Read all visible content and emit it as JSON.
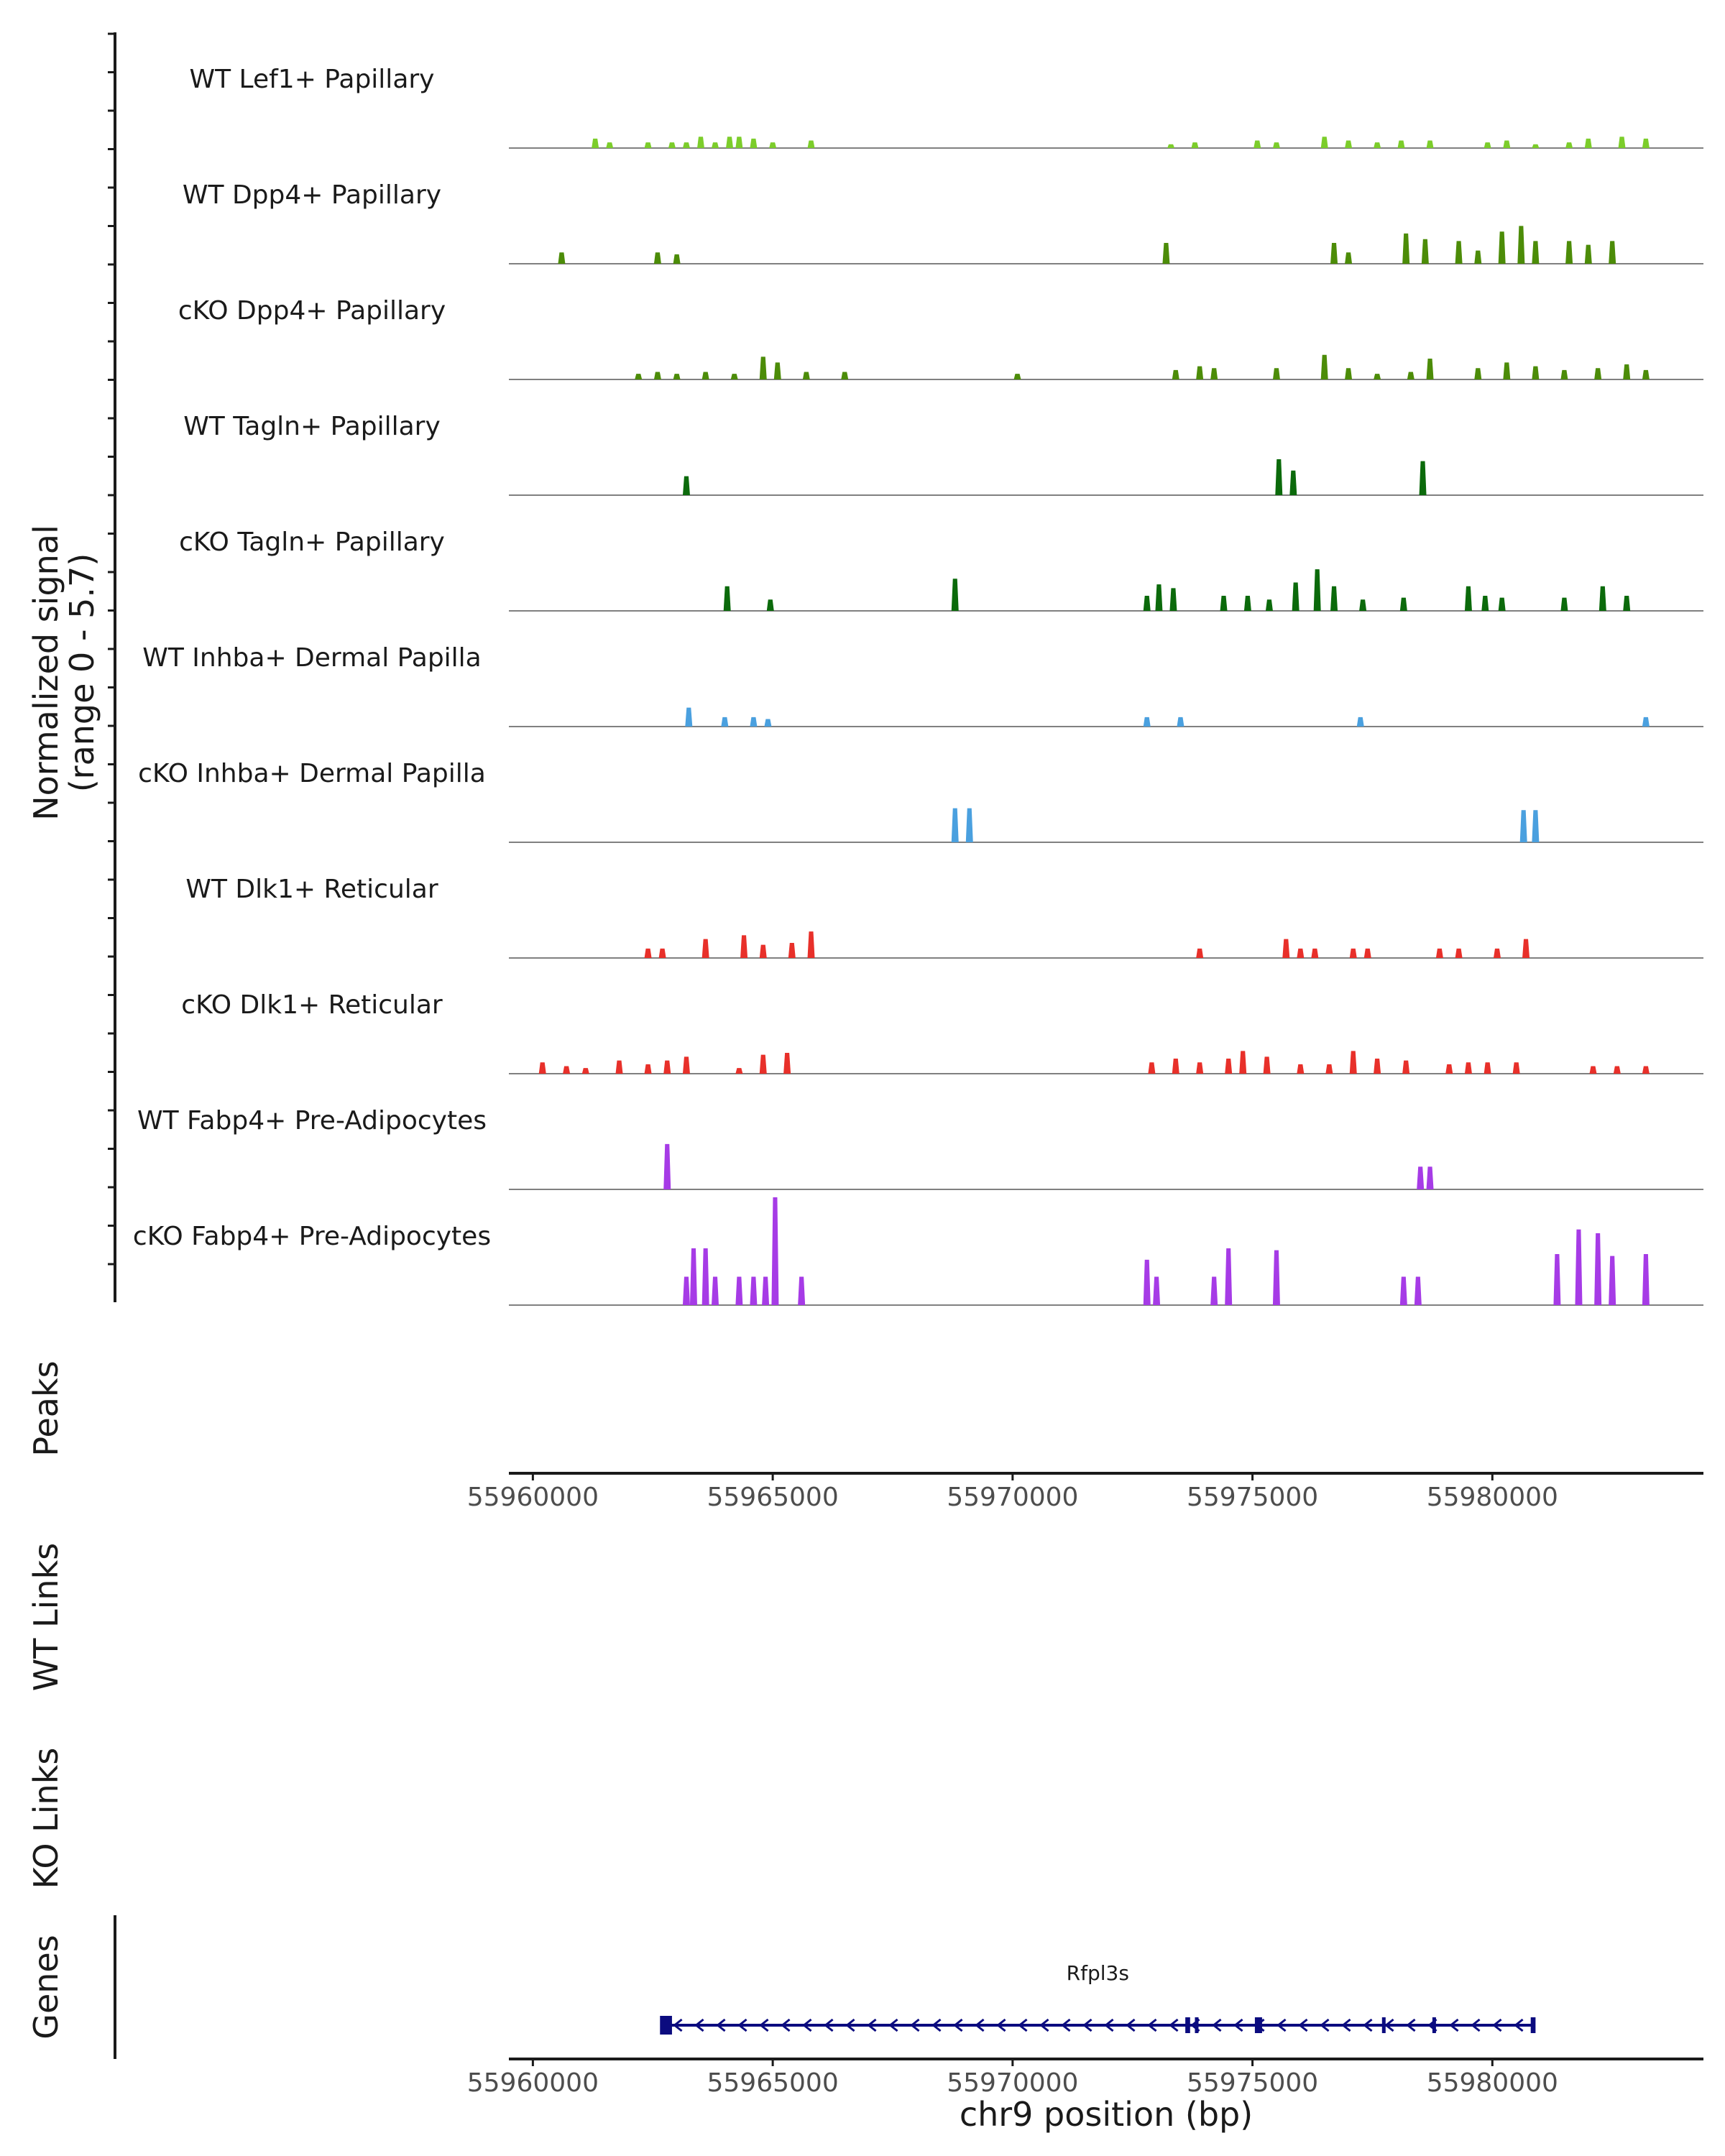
{
  "chart_data": {
    "type": "coverage-track",
    "y_axis_title": "Normalized signal",
    "y_axis_subtitle": "(range 0 - 5.7)",
    "y_range": [
      0,
      5.7
    ],
    "x_range": [
      55959500,
      55984400
    ],
    "xlabel": "chr9 position (bp)",
    "x_ticks": [
      55960000,
      55965000,
      55970000,
      55975000,
      55980000
    ],
    "x_tick_labels": [
      "55960000",
      "55965000",
      "55970000",
      "55975000",
      "55980000"
    ],
    "panels": {
      "peaks": "Peaks",
      "wt_links": "WT Links",
      "ko_links": "KO Links",
      "genes": "Genes"
    },
    "tracks": [
      {
        "label": "WT Lef1+ Papillary",
        "color": "#7CCD2B",
        "peaks": [
          [
            55961300,
            0.5
          ],
          [
            55961600,
            0.3
          ],
          [
            55962400,
            0.3
          ],
          [
            55962900,
            0.3
          ],
          [
            55963200,
            0.3
          ],
          [
            55963500,
            0.6
          ],
          [
            55963800,
            0.3
          ],
          [
            55964100,
            0.6
          ],
          [
            55964300,
            0.6
          ],
          [
            55964600,
            0.5
          ],
          [
            55965000,
            0.3
          ],
          [
            55965800,
            0.4
          ],
          [
            55973300,
            0.2
          ],
          [
            55973800,
            0.3
          ],
          [
            55975100,
            0.4
          ],
          [
            55975500,
            0.3
          ],
          [
            55976500,
            0.6
          ],
          [
            55977000,
            0.4
          ],
          [
            55977600,
            0.3
          ],
          [
            55978100,
            0.4
          ],
          [
            55978700,
            0.4
          ],
          [
            55979900,
            0.3
          ],
          [
            55980300,
            0.4
          ],
          [
            55980900,
            0.2
          ],
          [
            55981600,
            0.3
          ],
          [
            55982000,
            0.5
          ],
          [
            55982700,
            0.6
          ],
          [
            55983200,
            0.5
          ]
        ]
      },
      {
        "label": "WT Dpp4+ Papillary",
        "color": "#4C8C08",
        "peaks": [
          [
            55960600,
            0.6
          ],
          [
            55962600,
            0.6
          ],
          [
            55963000,
            0.5
          ],
          [
            55973200,
            1.1
          ],
          [
            55976700,
            1.1
          ],
          [
            55977000,
            0.6
          ],
          [
            55978200,
            1.6
          ],
          [
            55978600,
            1.3
          ],
          [
            55979300,
            1.2
          ],
          [
            55979700,
            0.7
          ],
          [
            55980200,
            1.7
          ],
          [
            55980600,
            2.0
          ],
          [
            55980900,
            1.2
          ],
          [
            55981600,
            1.2
          ],
          [
            55982000,
            1.0
          ],
          [
            55982500,
            1.2
          ]
        ]
      },
      {
        "label": "cKO Dpp4+ Papillary",
        "color": "#4C8C08",
        "peaks": [
          [
            55962200,
            0.3
          ],
          [
            55962600,
            0.4
          ],
          [
            55963000,
            0.3
          ],
          [
            55963600,
            0.4
          ],
          [
            55964200,
            0.3
          ],
          [
            55964800,
            1.2
          ],
          [
            55965100,
            0.9
          ],
          [
            55965700,
            0.4
          ],
          [
            55966500,
            0.4
          ],
          [
            55970100,
            0.3
          ],
          [
            55973400,
            0.5
          ],
          [
            55973900,
            0.7
          ],
          [
            55974200,
            0.6
          ],
          [
            55975500,
            0.6
          ],
          [
            55976500,
            1.3
          ],
          [
            55977000,
            0.6
          ],
          [
            55977600,
            0.3
          ],
          [
            55978300,
            0.4
          ],
          [
            55978700,
            1.1
          ],
          [
            55979700,
            0.6
          ],
          [
            55980300,
            0.9
          ],
          [
            55980900,
            0.7
          ],
          [
            55981500,
            0.5
          ],
          [
            55982200,
            0.6
          ],
          [
            55982800,
            0.8
          ],
          [
            55983200,
            0.5
          ]
        ]
      },
      {
        "label": "WT Tagln+ Papillary",
        "color": "#0B6A0B",
        "peaks": [
          [
            55963200,
            1.0
          ],
          [
            55975550,
            1.9
          ],
          [
            55975850,
            1.3
          ],
          [
            55978550,
            1.8
          ]
        ]
      },
      {
        "label": "cKO Tagln+ Papillary",
        "color": "#0B6A0B",
        "peaks": [
          [
            55964050,
            1.3
          ],
          [
            55964950,
            0.6
          ],
          [
            55968800,
            1.7
          ],
          [
            55972800,
            0.8
          ],
          [
            55973050,
            1.4
          ],
          [
            55973350,
            1.2
          ],
          [
            55974400,
            0.8
          ],
          [
            55974900,
            0.8
          ],
          [
            55975350,
            0.6
          ],
          [
            55975900,
            1.5
          ],
          [
            55976350,
            2.2
          ],
          [
            55976700,
            1.3
          ],
          [
            55977300,
            0.6
          ],
          [
            55978150,
            0.7
          ],
          [
            55979500,
            1.3
          ],
          [
            55979850,
            0.8
          ],
          [
            55980200,
            0.7
          ],
          [
            55981500,
            0.7
          ],
          [
            55982300,
            1.3
          ],
          [
            55982800,
            0.8
          ]
        ]
      },
      {
        "label": "WT Inhba+ Dermal Papilla",
        "color": "#4AA0DF",
        "peaks": [
          [
            55963250,
            1.0
          ],
          [
            55964000,
            0.5
          ],
          [
            55964600,
            0.5
          ],
          [
            55964900,
            0.4
          ],
          [
            55972800,
            0.5
          ],
          [
            55973500,
            0.5
          ],
          [
            55977250,
            0.5
          ],
          [
            55983200,
            0.5
          ]
        ]
      },
      {
        "label": "cKO Inhba+ Dermal Papilla",
        "color": "#4AA0DF",
        "peaks": [
          [
            55968800,
            1.8
          ],
          [
            55969100,
            1.8
          ],
          [
            55980650,
            1.7
          ],
          [
            55980900,
            1.7
          ]
        ]
      },
      {
        "label": "WT Dlk1+ Reticular",
        "color": "#E8302A",
        "peaks": [
          [
            55962400,
            0.5
          ],
          [
            55962700,
            0.5
          ],
          [
            55963600,
            1.0
          ],
          [
            55964400,
            1.2
          ],
          [
            55964800,
            0.7
          ],
          [
            55965400,
            0.8
          ],
          [
            55965800,
            1.4
          ],
          [
            55973900,
            0.5
          ],
          [
            55975700,
            1.0
          ],
          [
            55976000,
            0.5
          ],
          [
            55976300,
            0.5
          ],
          [
            55977100,
            0.5
          ],
          [
            55977400,
            0.5
          ],
          [
            55978900,
            0.5
          ],
          [
            55979300,
            0.5
          ],
          [
            55980100,
            0.5
          ],
          [
            55980700,
            1.0
          ]
        ]
      },
      {
        "label": "cKO Dlk1+ Reticular",
        "color": "#E8302A",
        "peaks": [
          [
            55960200,
            0.6
          ],
          [
            55960700,
            0.4
          ],
          [
            55961100,
            0.3
          ],
          [
            55961800,
            0.7
          ],
          [
            55962400,
            0.5
          ],
          [
            55962800,
            0.7
          ],
          [
            55963200,
            0.9
          ],
          [
            55964300,
            0.3
          ],
          [
            55964800,
            1.0
          ],
          [
            55965300,
            1.1
          ],
          [
            55972900,
            0.6
          ],
          [
            55973400,
            0.8
          ],
          [
            55973900,
            0.6
          ],
          [
            55974500,
            0.8
          ],
          [
            55974800,
            1.2
          ],
          [
            55975300,
            0.9
          ],
          [
            55976000,
            0.5
          ],
          [
            55976600,
            0.5
          ],
          [
            55977100,
            1.2
          ],
          [
            55977600,
            0.8
          ],
          [
            55978200,
            0.7
          ],
          [
            55979100,
            0.5
          ],
          [
            55979500,
            0.6
          ],
          [
            55979900,
            0.6
          ],
          [
            55980500,
            0.6
          ],
          [
            55982100,
            0.4
          ],
          [
            55982600,
            0.4
          ],
          [
            55983200,
            0.4
          ]
        ]
      },
      {
        "label": "WT Fabp4+ Pre-Adipocytes",
        "color": "#A63BE6",
        "peaks": [
          [
            55962800,
            2.4
          ],
          [
            55978500,
            1.2
          ],
          [
            55978700,
            1.2
          ]
        ]
      },
      {
        "label": "cKO Fabp4+ Pre-Adipocytes",
        "color": "#A63BE6",
        "peaks": [
          [
            55963200,
            1.5
          ],
          [
            55963350,
            3.0
          ],
          [
            55963600,
            3.0
          ],
          [
            55963800,
            1.5
          ],
          [
            55964300,
            1.5
          ],
          [
            55964600,
            1.5
          ],
          [
            55964850,
            1.5
          ],
          [
            55965050,
            5.7
          ],
          [
            55965600,
            1.5
          ],
          [
            55972800,
            2.4
          ],
          [
            55973000,
            1.5
          ],
          [
            55974200,
            1.5
          ],
          [
            55974500,
            3.0
          ],
          [
            55975500,
            2.9
          ],
          [
            55978150,
            1.5
          ],
          [
            55978450,
            1.5
          ],
          [
            55981350,
            2.7
          ],
          [
            55981800,
            4.0
          ],
          [
            55982200,
            3.8
          ],
          [
            55982500,
            2.6
          ],
          [
            55983200,
            2.7
          ]
        ]
      }
    ],
    "gene": {
      "name": "Rfpl3s",
      "start": 55962700,
      "end": 55980850,
      "strand": "-",
      "color": "#0B0B7F",
      "exons": [
        [
          55962650,
          55962900
        ],
        [
          55973600,
          55973700
        ],
        [
          55973800,
          55973850
        ],
        [
          55975050,
          55975200
        ],
        [
          55977700,
          55977750
        ],
        [
          55978750,
          55978800
        ],
        [
          55980800,
          55980900
        ]
      ]
    }
  }
}
